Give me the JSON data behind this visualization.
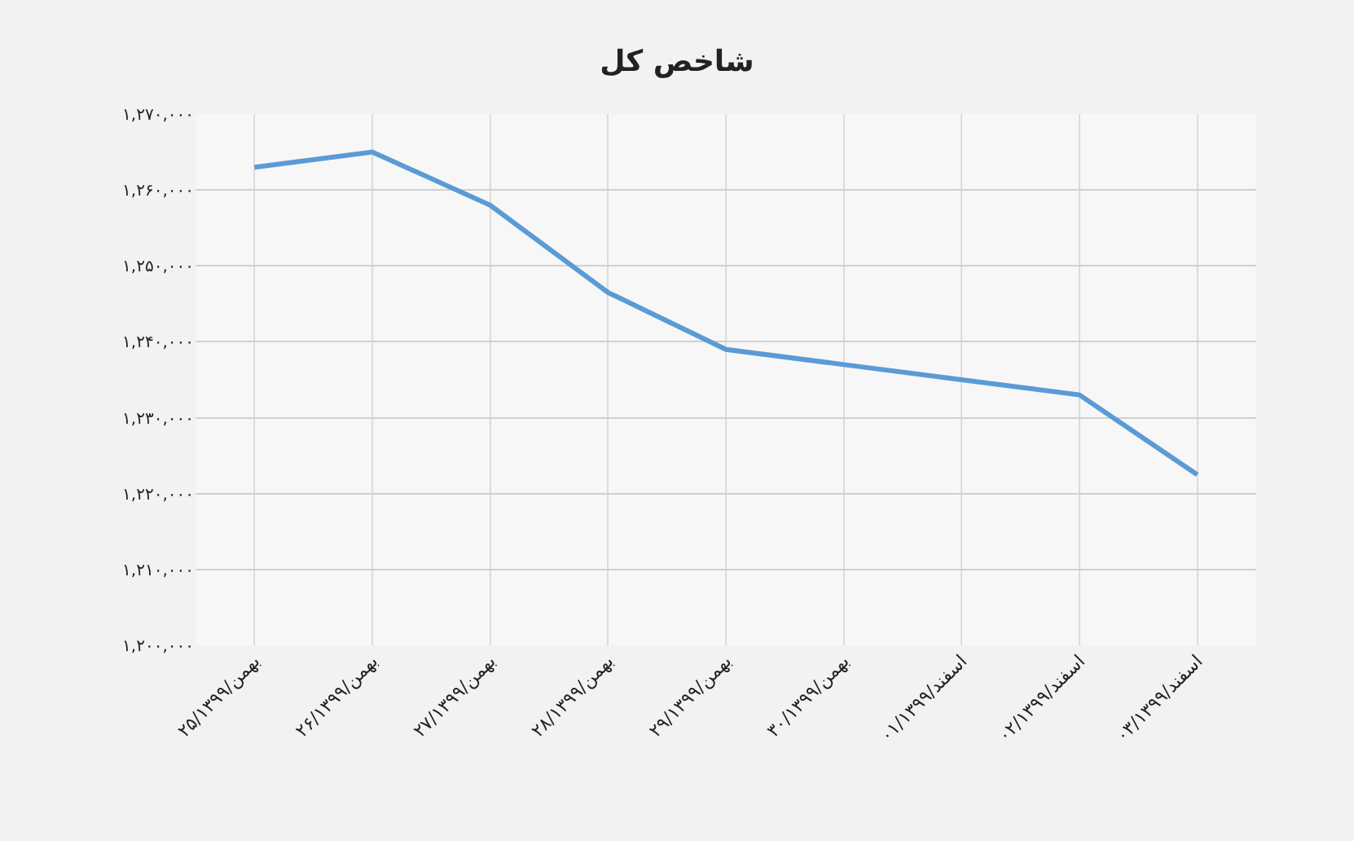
{
  "chart_data": {
    "type": "line",
    "title": "شاخص کل",
    "categories": [
      "۲۵/بهمن/۱۳۹۹",
      "۲۶/بهمن/۱۳۹۹",
      "۲۷/بهمن/۱۳۹۹",
      "۲۸/بهمن/۱۳۹۹",
      "۲۹/بهمن/۱۳۹۹",
      "۳۰/بهمن/۱۳۹۹",
      "۰۱/اسفند/۱۳۹۹",
      "۰۲/اسفند/۱۳۹۹",
      "۰۳/اسفند/۱۳۹۹"
    ],
    "series": [
      {
        "color": "#5b9bd5",
        "values": [
          1263000,
          1265000,
          1258000,
          1246500,
          1239000,
          1237000,
          1235000,
          1233000,
          1222500
        ]
      }
    ],
    "ylim": [
      1200000,
      1270000
    ],
    "yticks": [
      {
        "value": 1200000,
        "label": "۱,۲۰۰,۰۰۰"
      },
      {
        "value": 1210000,
        "label": "۱,۲۱۰,۰۰۰"
      },
      {
        "value": 1220000,
        "label": "۱,۲۲۰,۰۰۰"
      },
      {
        "value": 1230000,
        "label": "۱,۲۳۰,۰۰۰"
      },
      {
        "value": 1240000,
        "label": "۱,۲۴۰,۰۰۰"
      },
      {
        "value": 1250000,
        "label": "۱,۲۵۰,۰۰۰"
      },
      {
        "value": 1260000,
        "label": "۱,۲۶۰,۰۰۰"
      },
      {
        "value": 1270000,
        "label": "۱,۲۷۰,۰۰۰"
      }
    ],
    "grid": true,
    "marker": "none",
    "line_style": "solid"
  }
}
